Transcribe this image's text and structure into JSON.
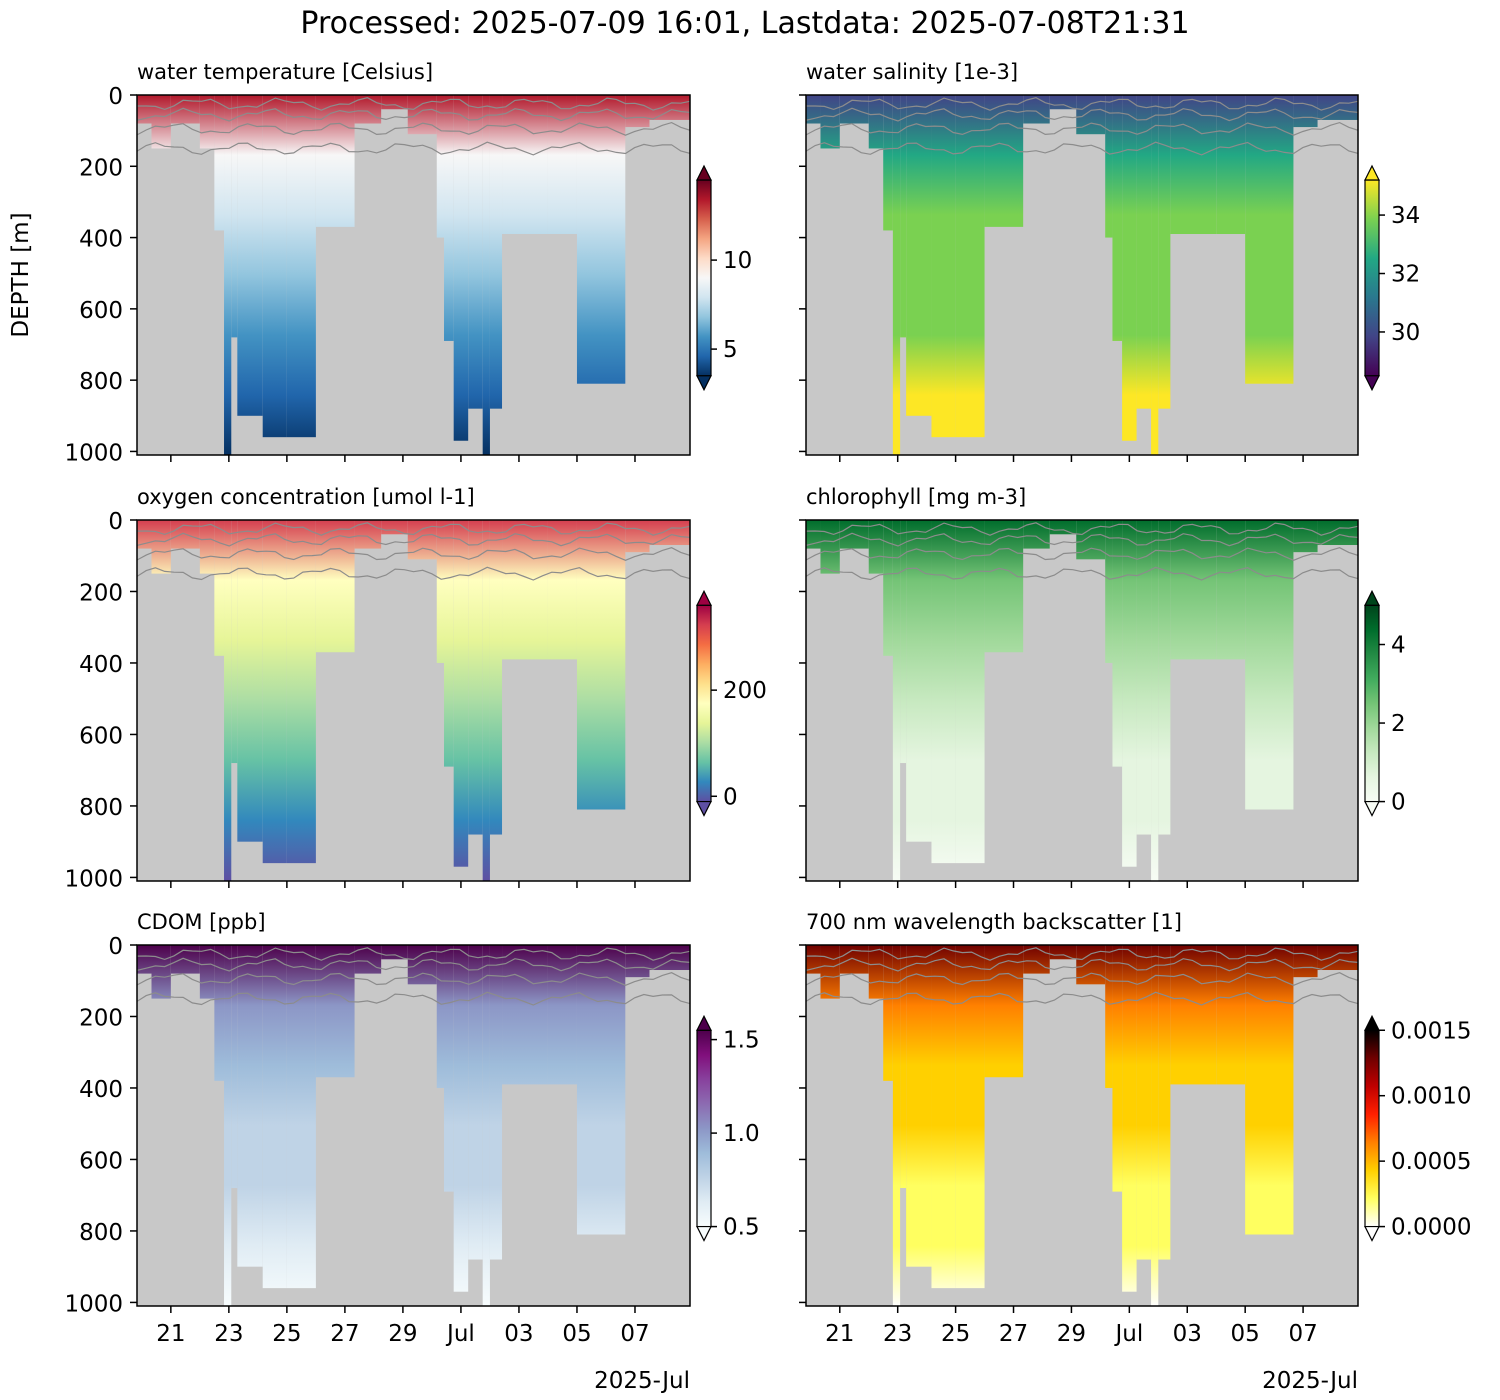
{
  "figure": {
    "suptitle": "Processed: 2025-07-09 16:01, Lastdata: 2025-07-08T21:31",
    "ylabel": "DEPTH [m]",
    "x_date_label": "2025-Jul",
    "x_tick_labels": [
      "21",
      "23",
      "25",
      "27",
      "29",
      "Jul",
      "03",
      "05",
      "07"
    ],
    "y_tick_labels": [
      "0",
      "200",
      "400",
      "600",
      "800",
      "1000"
    ],
    "colors": {
      "background_gray": "#c8c8c8",
      "contour": "#8c8c8c"
    }
  },
  "chart_data": [
    {
      "type": "heatmap",
      "title": "water temperature [Celsius]",
      "colormap": "RdBu_r",
      "colorbar_ticks": [
        "5",
        "10"
      ],
      "colorbar_range": [
        3.5,
        14.5
      ],
      "xlim": [
        "2025-06-19T20:00",
        "2025-07-08T21:31"
      ],
      "x_ticks": [
        "2025-06-21",
        "2025-06-23",
        "2025-06-25",
        "2025-06-27",
        "2025-06-29",
        "2025-07-01",
        "2025-07-03",
        "2025-07-05",
        "2025-07-07"
      ],
      "ylim": [
        1010,
        0
      ],
      "y_ticks": [
        0,
        200,
        400,
        600,
        800,
        1000
      ],
      "surface_value": 13,
      "deep_value": 4,
      "contours": true
    },
    {
      "type": "heatmap",
      "title": "water salinity [1e-3]",
      "colormap": "viridis",
      "colorbar_ticks": [
        "30",
        "32",
        "34"
      ],
      "colorbar_range": [
        28.5,
        35.2
      ],
      "xlim": [
        "2025-06-19T20:00",
        "2025-07-08T21:31"
      ],
      "x_ticks": [
        "2025-06-21",
        "2025-06-23",
        "2025-06-25",
        "2025-06-27",
        "2025-06-29",
        "2025-07-01",
        "2025-07-03",
        "2025-07-05",
        "2025-07-07"
      ],
      "ylim": [
        1010,
        0
      ],
      "y_ticks": [
        0,
        200,
        400,
        600,
        800,
        1000
      ],
      "surface_value": 30.5,
      "deep_value": 35,
      "contours": true
    },
    {
      "type": "heatmap",
      "title": "oxygen concentration [umol l-1]",
      "colormap": "Spectral_r",
      "colorbar_ticks": [
        "0",
        "200"
      ],
      "colorbar_range": [
        -10,
        360
      ],
      "xlim": [
        "2025-06-19T20:00",
        "2025-07-08T21:31"
      ],
      "x_ticks": [
        "2025-06-21",
        "2025-06-23",
        "2025-06-25",
        "2025-06-27",
        "2025-06-29",
        "2025-07-01",
        "2025-07-03",
        "2025-07-05",
        "2025-07-07"
      ],
      "ylim": [
        1010,
        0
      ],
      "y_ticks": [
        0,
        200,
        400,
        600,
        800,
        1000
      ],
      "surface_value": 340,
      "deep_value": 5,
      "contours": true
    },
    {
      "type": "heatmap",
      "title": "chlorophyll [mg m-3]",
      "colormap": "Greens",
      "colorbar_ticks": [
        "0",
        "2",
        "4"
      ],
      "colorbar_range": [
        0,
        5
      ],
      "xlim": [
        "2025-06-19T20:00",
        "2025-07-08T21:31"
      ],
      "x_ticks": [
        "2025-06-21",
        "2025-06-23",
        "2025-06-25",
        "2025-06-27",
        "2025-06-29",
        "2025-07-01",
        "2025-07-03",
        "2025-07-05",
        "2025-07-07"
      ],
      "ylim": [
        1010,
        0
      ],
      "y_ticks": [
        0,
        200,
        400,
        600,
        800,
        1000
      ],
      "surface_value": 4.5,
      "deep_value": 0.1,
      "contours": true
    },
    {
      "type": "heatmap",
      "title": "CDOM [ppb]",
      "colormap": "BuPu",
      "colorbar_ticks": [
        "0.5",
        "1.0",
        "1.5"
      ],
      "colorbar_range": [
        0.5,
        1.55
      ],
      "xlim": [
        "2025-06-19T20:00",
        "2025-07-08T21:31"
      ],
      "x_ticks": [
        "2025-06-21",
        "2025-06-23",
        "2025-06-25",
        "2025-06-27",
        "2025-06-29",
        "2025-07-01",
        "2025-07-03",
        "2025-07-05",
        "2025-07-07"
      ],
      "ylim": [
        1010,
        0
      ],
      "y_ticks": [
        0,
        200,
        400,
        600,
        800,
        1000
      ],
      "surface_value": 1.5,
      "deep_value": 0.55,
      "contours": true
    },
    {
      "type": "heatmap",
      "title": "700 nm wavelength backscatter [1]",
      "colormap": "hot_r",
      "colorbar_ticks": [
        "0.0000",
        "0.0005",
        "0.0010",
        "0.0015"
      ],
      "colorbar_range": [
        0,
        0.0015
      ],
      "xlim": [
        "2025-06-19T20:00",
        "2025-07-08T21:31"
      ],
      "x_ticks": [
        "2025-06-21",
        "2025-06-23",
        "2025-06-25",
        "2025-06-27",
        "2025-06-29",
        "2025-07-01",
        "2025-07-03",
        "2025-07-05",
        "2025-07-07"
      ],
      "ylim": [
        1010,
        0
      ],
      "y_ticks": [
        0,
        200,
        400,
        600,
        800,
        1000
      ],
      "surface_value": 0.0012,
      "deep_value": 2e-05,
      "contours": true
    }
  ],
  "dive_depth_profile": [
    {
      "start": "2025-06-19T20:00",
      "end": "2025-06-20T08:00",
      "max_depth": 80
    },
    {
      "start": "2025-06-20T08:00",
      "end": "2025-06-21T00:00",
      "max_depth": 150
    },
    {
      "start": "2025-06-21T00:00",
      "end": "2025-06-22T00:00",
      "max_depth": 80
    },
    {
      "start": "2025-06-22T00:00",
      "end": "2025-06-22T12:00",
      "max_depth": 150
    },
    {
      "start": "2025-06-22T12:00",
      "end": "2025-06-22T20:00",
      "max_depth": 380
    },
    {
      "start": "2025-06-22T20:00",
      "end": "2025-06-23T02:00",
      "max_depth": 1010
    },
    {
      "start": "2025-06-23T02:00",
      "end": "2025-06-23T07:00",
      "max_depth": 680
    },
    {
      "start": "2025-06-23T07:00",
      "end": "2025-06-24T04:00",
      "max_depth": 900
    },
    {
      "start": "2025-06-24T04:00",
      "end": "2025-06-25T00:00",
      "max_depth": 960
    },
    {
      "start": "2025-06-25T00:00",
      "end": "2025-06-26T00:00",
      "max_depth": 960
    },
    {
      "start": "2025-06-26T00:00",
      "end": "2025-06-27T08:00",
      "max_depth": 370
    },
    {
      "start": "2025-06-27T08:00",
      "end": "2025-06-28T06:00",
      "max_depth": 80
    },
    {
      "start": "2025-06-28T06:00",
      "end": "2025-06-29T04:00",
      "max_depth": 40
    },
    {
      "start": "2025-06-29T04:00",
      "end": "2025-06-30T04:00",
      "max_depth": 110
    },
    {
      "start": "2025-06-30T04:00",
      "end": "2025-06-30T10:00",
      "max_depth": 400
    },
    {
      "start": "2025-06-30T10:00",
      "end": "2025-06-30T18:00",
      "max_depth": 690
    },
    {
      "start": "2025-06-30T18:00",
      "end": "2025-07-01T06:00",
      "max_depth": 970
    },
    {
      "start": "2025-07-01T06:00",
      "end": "2025-07-01T18:00",
      "max_depth": 880
    },
    {
      "start": "2025-07-01T18:00",
      "end": "2025-07-02T00:00",
      "max_depth": 1010
    },
    {
      "start": "2025-07-02T00:00",
      "end": "2025-07-02T10:00",
      "max_depth": 880
    },
    {
      "start": "2025-07-02T10:00",
      "end": "2025-07-04T00:00",
      "max_depth": 390
    },
    {
      "start": "2025-07-04T00:00",
      "end": "2025-07-05T00:00",
      "max_depth": 390
    },
    {
      "start": "2025-07-05T00:00",
      "end": "2025-07-06T16:00",
      "max_depth": 810
    },
    {
      "start": "2025-07-06T16:00",
      "end": "2025-07-07T12:00",
      "max_depth": 90
    },
    {
      "start": "2025-07-07T12:00",
      "end": "2025-07-08T21:31",
      "max_depth": 70
    }
  ]
}
